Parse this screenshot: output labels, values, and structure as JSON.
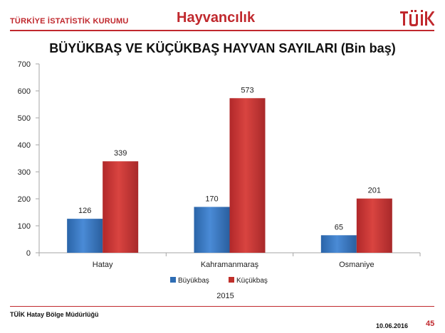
{
  "header": {
    "organization": "TÜRKİYE İSTATİSTİK KURUMU",
    "section": "Hayvancılık",
    "logo_text": "TÜİK"
  },
  "colors": {
    "brand": "#c0282d",
    "buyukbas": "#2e6db4",
    "kucukbas": "#c0302b"
  },
  "chart_data": {
    "type": "bar",
    "title": "BÜYÜKBAŞ VE KÜÇÜKBAŞ HAYVAN SAYILARI (Bin baş)",
    "categories": [
      "Hatay",
      "Kahramanmaraş",
      "Osmaniye"
    ],
    "series": [
      {
        "name": "Büyükbaş",
        "values": [
          126,
          170,
          65
        ]
      },
      {
        "name": "Küçükbaş",
        "values": [
          339,
          573,
          201
        ]
      }
    ],
    "xlabel": "2015",
    "ylabel": "",
    "ylim": [
      0,
      700
    ],
    "yticks": [
      0,
      100,
      200,
      300,
      400,
      500,
      600,
      700
    ],
    "grid": false,
    "legend": "bottom",
    "data_labels": true
  },
  "footer": {
    "office": "TÜİK Hatay Bölge Müdürlüğü",
    "date": "10.06.2016",
    "page": "45"
  }
}
